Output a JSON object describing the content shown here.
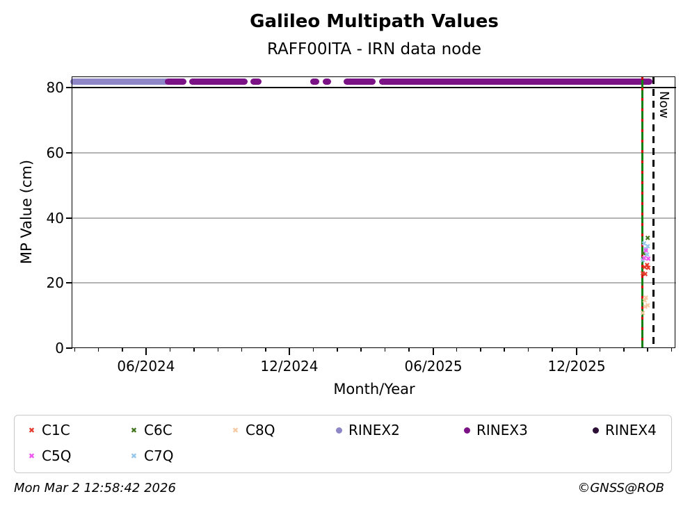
{
  "title": "Galileo Multipath Values",
  "subtitle": "RAFF00ITA - IRN data node",
  "footer": {
    "timestamp": "Mon Mar  2 12:58:42 2026",
    "copyright": "©GNSS@ROB"
  },
  "colors": {
    "C1C": "#e8392d",
    "C6C": "#41761e",
    "C8Q": "#f6c9a2",
    "RINEX2": "#8d87c7",
    "RINEX3": "#7b1286",
    "RINEX4": "#2d0e36",
    "C5Q": "#ef56ef",
    "C7Q": "#96c6ea",
    "grid": "#b3b3b3",
    "threshold_line": "#000000",
    "last_data_line_green": "#128012",
    "last_data_line_red_dash": "#cf0000",
    "now_line": "#000000"
  },
  "legend": {
    "items": [
      {
        "label": "C1C",
        "marker": "x",
        "color_key": "C1C",
        "row": 0,
        "col": 0
      },
      {
        "label": "C6C",
        "marker": "x",
        "color_key": "C6C",
        "row": 0,
        "col": 1
      },
      {
        "label": "C8Q",
        "marker": "x",
        "color_key": "C8Q",
        "row": 0,
        "col": 2
      },
      {
        "label": "RINEX2",
        "marker": "circle",
        "color_key": "RINEX2",
        "row": 0,
        "col": 3
      },
      {
        "label": "RINEX3",
        "marker": "circle",
        "color_key": "RINEX3",
        "row": 0,
        "col": 4
      },
      {
        "label": "RINEX4",
        "marker": "circle",
        "color_key": "RINEX4",
        "row": 0,
        "col": 5
      },
      {
        "label": "C5Q",
        "marker": "x",
        "color_key": "C5Q",
        "row": 1,
        "col": 0
      },
      {
        "label": "C7Q",
        "marker": "x",
        "color_key": "C7Q",
        "row": 1,
        "col": 1
      }
    ]
  },
  "chart_data": {
    "type": "scatter",
    "title": "Galileo Multipath Values",
    "subtitle": "RAFF00ITA - IRN data node",
    "xlabel": "Month/Year",
    "ylabel": "MP Value (cm)",
    "x_axis": {
      "start": "2024-03",
      "end": "2026-04",
      "major_ticks": [
        {
          "label": "06/2024",
          "x": 0.1221
        },
        {
          "label": "12/2024",
          "x": 0.3594
        },
        {
          "label": "06/2025",
          "x": 0.598
        },
        {
          "label": "12/2025",
          "x": 0.8353
        }
      ],
      "minor_first": 0.0035,
      "minor_spacing": 0.03955
    },
    "y_axis": {
      "min": 0,
      "max": 83.2,
      "ticks": [
        {
          "label": "0",
          "value": 0
        },
        {
          "label": "20",
          "value": 20
        },
        {
          "label": "40",
          "value": 40
        },
        {
          "label": "60",
          "value": 60
        },
        {
          "label": "80",
          "value": 80
        }
      ],
      "gridline_values": [
        20,
        40,
        60
      ],
      "threshold_value": 80
    },
    "overrange_value": 81.9,
    "overrange_segments": [
      {
        "series": "RINEX2",
        "x0": 0.0,
        "x1": 0.157,
        "approx_dates": "2024-03 to 2024-07"
      },
      {
        "series": "RINEX3",
        "x0": 0.157,
        "x1": 0.186,
        "approx_dates": "2024-07"
      },
      {
        "series": "RINEX3",
        "x0": 0.197,
        "x1": 0.287,
        "approx_dates": "2024-08 to 2024-10"
      },
      {
        "series": "RINEX3",
        "x0": 0.298,
        "x1": 0.31,
        "approx_dates": "2024-10"
      },
      {
        "series": "RINEX3",
        "x0": 0.397,
        "x1": 0.406,
        "approx_dates": "2025-01"
      },
      {
        "series": "RINEX3",
        "x0": 0.418,
        "x1": 0.425,
        "approx_dates": "2025-01"
      },
      {
        "series": "RINEX3",
        "x0": 0.453,
        "x1": 0.499,
        "approx_dates": "2025-02 to 2025-03"
      },
      {
        "series": "RINEX3",
        "x0": 0.511,
        "x1": 0.957,
        "approx_dates": "2025-04 to 2026-02"
      }
    ],
    "points": [
      {
        "series": "C6C",
        "x": 0.953,
        "value": 33.4
      },
      {
        "series": "C6C",
        "x": 0.946,
        "value": 28.8
      },
      {
        "series": "C7Q",
        "x": 0.947,
        "value": 31.8
      },
      {
        "series": "C7Q",
        "x": 0.953,
        "value": 31.0
      },
      {
        "series": "C7Q",
        "x": 0.95,
        "value": 30.0
      },
      {
        "series": "C7Q",
        "x": 0.952,
        "value": 28.4
      },
      {
        "series": "C7Q",
        "x": 0.945,
        "value": 26.6
      },
      {
        "series": "C5Q",
        "x": 0.95,
        "value": 29.6
      },
      {
        "series": "C5Q",
        "x": 0.947,
        "value": 27.4
      },
      {
        "series": "C5Q",
        "x": 0.954,
        "value": 27.2
      },
      {
        "series": "C1C",
        "x": 0.952,
        "value": 25.2
      },
      {
        "series": "C1C",
        "x": 0.948,
        "value": 24.6
      },
      {
        "series": "C1C",
        "x": 0.954,
        "value": 24.4
      },
      {
        "series": "C1C",
        "x": 0.945,
        "value": 22.6
      },
      {
        "series": "C1C",
        "x": 0.949,
        "value": 22.3
      },
      {
        "series": "C8Q",
        "x": 0.95,
        "value": 15.1
      },
      {
        "series": "C8Q",
        "x": 0.948,
        "value": 14.3
      },
      {
        "series": "C8Q",
        "x": 0.953,
        "value": 12.7
      },
      {
        "series": "C8Q",
        "x": 0.949,
        "value": 12.4
      },
      {
        "series": "C8Q",
        "x": 0.945,
        "value": 10.5
      }
    ],
    "annotations": {
      "last_data_line_x": 0.9447,
      "now_line_x": 0.9625,
      "now_label": "Now"
    },
    "legend_position": "below",
    "grid": "horizontal-only"
  }
}
